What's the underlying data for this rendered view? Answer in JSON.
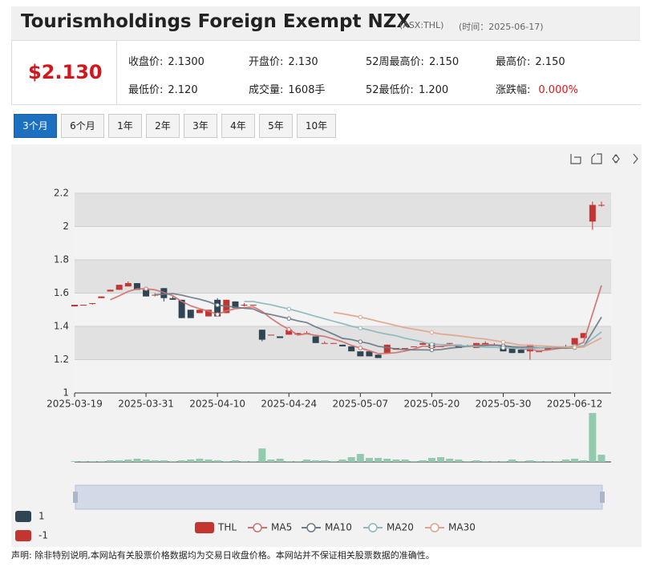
{
  "header": {
    "title": "Tourismholdings Foreign Exempt NZX",
    "code": "(ASX:THL)",
    "time": "(时间：2025-06-17)",
    "price": "$2.130",
    "stats": [
      {
        "label": "收盘价:",
        "value": "2.1300"
      },
      {
        "label": "开盘价:",
        "value": "2.130"
      },
      {
        "label": "52周最高价:",
        "value": "2.150"
      },
      {
        "label": "最高价:",
        "value": "2.150"
      },
      {
        "label": "最低价:",
        "value": "2.120"
      },
      {
        "label": "成交量:",
        "value": "1608手"
      },
      {
        "label": "52最低价:",
        "value": "1.200"
      },
      {
        "label": "涨跌幅:",
        "value": "0.000%"
      }
    ]
  },
  "tabs": [
    "3个月",
    "6个月",
    "1年",
    "2年",
    "3年",
    "4年",
    "5年",
    "10年"
  ],
  "footer": "声明: 除非特别说明,本网站有关股票价格数据均为交易日收盘价格。本网站并不保证相关股票数据的准确性。",
  "chart_data": {
    "type": "candlestick",
    "categories": [
      "2025-03-19",
      null,
      null,
      null,
      null,
      null,
      null,
      null,
      "2025-03-31",
      null,
      null,
      null,
      null,
      null,
      null,
      null,
      "2025-04-10",
      null,
      null,
      null,
      null,
      null,
      null,
      null,
      "2025-04-24",
      null,
      null,
      null,
      null,
      null,
      null,
      null,
      "2025-05-07",
      null,
      null,
      null,
      null,
      null,
      null,
      null,
      "2025-05-20",
      null,
      null,
      null,
      null,
      null,
      null,
      null,
      "2025-05-30",
      null,
      null,
      null,
      null,
      null,
      null,
      null,
      "2025-06-12",
      null,
      null,
      null
    ],
    "ylim": [
      1,
      2.2
    ],
    "yticks": [
      1,
      1.2,
      1.4,
      1.6,
      1.8,
      2,
      2.2
    ],
    "grid": true,
    "series": [
      {
        "name": "THL",
        "up_color": "#c23531",
        "down_color": "#2f4554",
        "values": [
          [
            1.52,
            1.53,
            1.52,
            1.53
          ],
          [
            1.53,
            1.53,
            1.53,
            1.53
          ],
          [
            1.54,
            1.54,
            1.53,
            1.54
          ],
          [
            1.57,
            1.58,
            1.57,
            1.58
          ],
          [
            1.61,
            1.62,
            1.61,
            1.62
          ],
          [
            1.62,
            1.65,
            1.62,
            1.65
          ],
          [
            1.64,
            1.66,
            1.64,
            1.67
          ],
          [
            1.66,
            1.62,
            1.62,
            1.66
          ],
          [
            1.62,
            1.58,
            1.58,
            1.62
          ],
          [
            1.59,
            1.59,
            1.58,
            1.6
          ],
          [
            1.63,
            1.57,
            1.55,
            1.63
          ],
          [
            1.57,
            1.56,
            1.56,
            1.58
          ],
          [
            1.56,
            1.45,
            1.45,
            1.56
          ],
          [
            1.5,
            1.45,
            1.45,
            1.5
          ],
          [
            1.48,
            1.5,
            1.48,
            1.5
          ],
          [
            1.46,
            1.5,
            1.46,
            1.5
          ],
          [
            1.56,
            1.46,
            1.46,
            1.57
          ],
          [
            1.48,
            1.56,
            1.48,
            1.56
          ],
          [
            1.55,
            1.51,
            1.51,
            1.55
          ],
          [
            1.53,
            1.53,
            1.52,
            1.54
          ],
          [
            1.53,
            1.53,
            1.53,
            1.53
          ],
          [
            1.38,
            1.32,
            1.31,
            1.38
          ],
          [
            1.35,
            1.35,
            1.35,
            1.35
          ],
          [
            1.34,
            1.33,
            1.33,
            1.34
          ],
          [
            1.35,
            1.38,
            1.35,
            1.38
          ],
          [
            1.35,
            1.36,
            1.35,
            1.36
          ],
          [
            1.36,
            1.36,
            1.36,
            1.37
          ],
          [
            1.34,
            1.3,
            1.3,
            1.34
          ],
          [
            1.3,
            1.3,
            1.3,
            1.31
          ],
          [
            1.3,
            1.3,
            1.3,
            1.3
          ],
          [
            1.29,
            1.28,
            1.28,
            1.29
          ],
          [
            1.28,
            1.25,
            1.25,
            1.28
          ],
          [
            1.25,
            1.22,
            1.22,
            1.25
          ],
          [
            1.25,
            1.22,
            1.22,
            1.25
          ],
          [
            1.23,
            1.21,
            1.21,
            1.23
          ],
          [
            1.24,
            1.29,
            1.24,
            1.29
          ],
          [
            1.26,
            1.27,
            1.26,
            1.27
          ],
          [
            1.27,
            1.27,
            1.27,
            1.27
          ],
          [
            1.28,
            1.28,
            1.28,
            1.28
          ],
          [
            1.29,
            1.3,
            1.29,
            1.3
          ],
          [
            1.3,
            1.27,
            1.27,
            1.3
          ],
          [
            1.28,
            1.28,
            1.28,
            1.28
          ],
          [
            1.3,
            1.3,
            1.29,
            1.3
          ],
          [
            1.29,
            1.27,
            1.27,
            1.29
          ],
          [
            1.28,
            1.28,
            1.28,
            1.29
          ],
          [
            1.27,
            1.3,
            1.27,
            1.3
          ],
          [
            1.29,
            1.3,
            1.29,
            1.31
          ],
          [
            1.29,
            1.29,
            1.29,
            1.3
          ],
          [
            1.28,
            1.25,
            1.25,
            1.28
          ],
          [
            1.27,
            1.24,
            1.24,
            1.27
          ],
          [
            1.26,
            1.24,
            1.24,
            1.26
          ],
          [
            1.25,
            1.29,
            1.2,
            1.29
          ],
          [
            1.25,
            1.25,
            1.25,
            1.25
          ],
          [
            1.26,
            1.27,
            1.26,
            1.27
          ],
          [
            1.27,
            1.28,
            1.27,
            1.28
          ],
          [
            1.28,
            1.28,
            1.28,
            1.29
          ],
          [
            1.29,
            1.33,
            1.29,
            1.33
          ],
          [
            1.33,
            1.36,
            1.33,
            1.36
          ],
          [
            2.03,
            2.13,
            1.98,
            2.15
          ],
          [
            2.13,
            2.13,
            2.12,
            2.15
          ]
        ]
      },
      {
        "name": "MA5",
        "color": "#d27070",
        "values": [
          null,
          null,
          null,
          null,
          1.56,
          1.584,
          1.61,
          1.626,
          1.626,
          1.62,
          1.604,
          1.584,
          1.55,
          1.524,
          1.506,
          1.492,
          1.472,
          1.494,
          1.506,
          1.512,
          1.518,
          1.49,
          1.448,
          1.412,
          1.382,
          1.348,
          1.356,
          1.346,
          1.34,
          1.324,
          1.308,
          1.286,
          1.27,
          1.254,
          1.236,
          1.238,
          1.242,
          1.252,
          1.264,
          1.282,
          1.278,
          1.28,
          1.286,
          1.284,
          1.28,
          1.286,
          1.29,
          1.288,
          1.284,
          1.276,
          1.264,
          1.262,
          1.254,
          1.258,
          1.266,
          1.274,
          1.282,
          1.304,
          1.476,
          1.646
        ]
      },
      {
        "name": "MA10",
        "color": "#6b7a86",
        "values": [
          null,
          null,
          null,
          null,
          null,
          null,
          null,
          null,
          null,
          1.59,
          1.594,
          1.597,
          1.588,
          1.575,
          1.563,
          1.548,
          1.528,
          1.522,
          1.515,
          1.509,
          1.505,
          1.481,
          1.471,
          1.459,
          1.447,
          1.433,
          1.423,
          1.397,
          1.376,
          1.353,
          1.328,
          1.321,
          1.308,
          1.297,
          1.28,
          1.273,
          1.264,
          1.261,
          1.259,
          1.259,
          1.258,
          1.261,
          1.269,
          1.274,
          1.281,
          1.282,
          1.285,
          1.287,
          1.284,
          1.278,
          1.275,
          1.276,
          1.271,
          1.271,
          1.271,
          1.269,
          1.272,
          1.279,
          1.367,
          1.456
        ]
      },
      {
        "name": "MA20",
        "color": "#8ab8bd",
        "values": [
          null,
          null,
          null,
          null,
          null,
          null,
          null,
          null,
          null,
          null,
          null,
          null,
          null,
          null,
          null,
          null,
          null,
          null,
          null,
          1.55,
          1.55,
          1.539,
          1.53,
          1.517,
          1.505,
          1.491,
          1.476,
          1.46,
          1.446,
          1.431,
          1.417,
          1.401,
          1.39,
          1.378,
          1.364,
          1.353,
          1.344,
          1.329,
          1.318,
          1.306,
          1.293,
          1.291,
          1.289,
          1.286,
          1.281,
          1.278,
          1.275,
          1.274,
          1.272,
          1.269,
          1.267,
          1.269,
          1.27,
          1.273,
          1.276,
          1.276,
          1.279,
          1.283,
          1.326,
          1.367
        ]
      },
      {
        "name": "MA30",
        "color": "#e0a48c",
        "values": [
          null,
          null,
          null,
          null,
          null,
          null,
          null,
          null,
          null,
          null,
          null,
          null,
          null,
          null,
          null,
          null,
          null,
          null,
          null,
          null,
          null,
          null,
          null,
          null,
          null,
          null,
          null,
          null,
          null,
          1.484,
          1.476,
          1.466,
          1.456,
          1.444,
          1.43,
          1.418,
          1.405,
          1.393,
          1.383,
          1.374,
          1.364,
          1.354,
          1.349,
          1.343,
          1.336,
          1.329,
          1.324,
          1.315,
          1.306,
          1.297,
          1.287,
          1.286,
          1.283,
          1.281,
          1.277,
          1.275,
          1.274,
          1.276,
          1.303,
          1.331
        ]
      }
    ],
    "volume": {
      "color": "#93c9ad",
      "values": [
        180,
        180,
        180,
        180,
        360,
        360,
        540,
        720,
        540,
        360,
        360,
        180,
        360,
        540,
        720,
        540,
        360,
        180,
        360,
        180,
        180,
        3000,
        540,
        720,
        180,
        180,
        540,
        360,
        360,
        180,
        540,
        1070,
        1780,
        890,
        890,
        720,
        540,
        540,
        180,
        360,
        890,
        1070,
        720,
        540,
        180,
        360,
        180,
        180,
        180,
        540,
        180,
        360,
        180,
        180,
        180,
        540,
        720,
        360,
        10900,
        1608
      ]
    },
    "visual_map": [
      {
        "label": "1",
        "color": "#2f4554"
      },
      {
        "label": "-1",
        "color": "#c23531"
      }
    ]
  }
}
